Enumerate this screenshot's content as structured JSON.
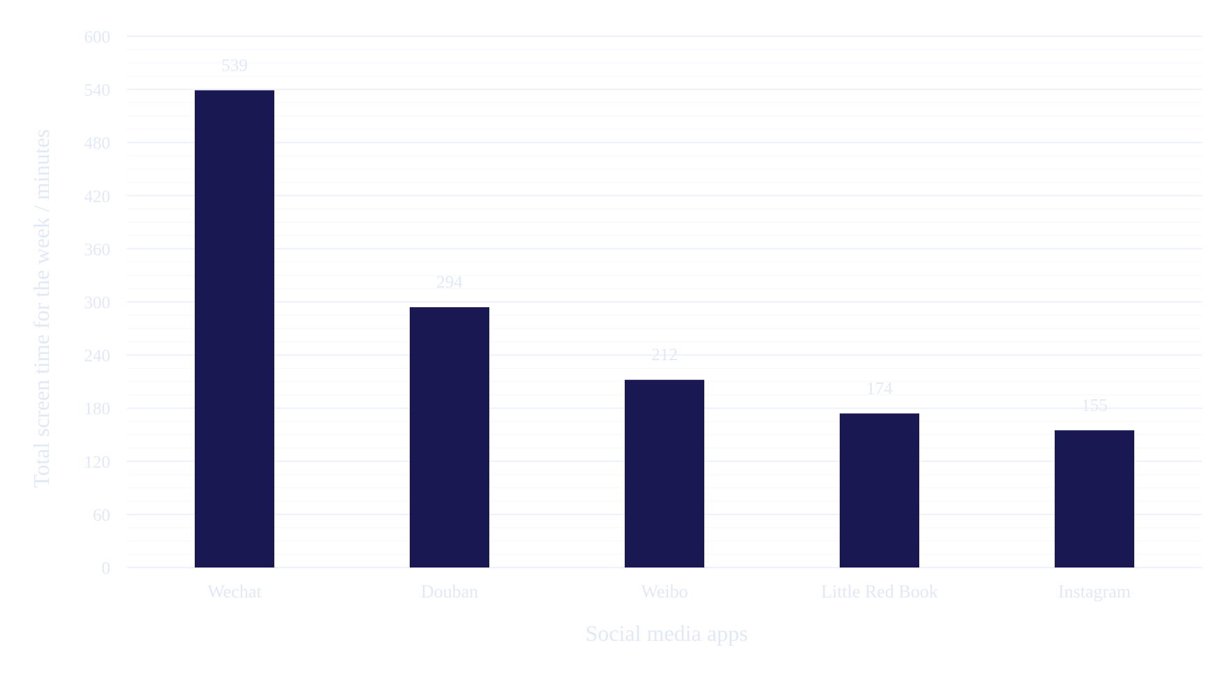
{
  "chart_data": {
    "type": "bar",
    "title": "",
    "xlabel": "Social media apps",
    "ylabel": "Total screen time for the week / minutes",
    "categories": [
      "Wechat",
      "Douban",
      "Weibo",
      "Little Red Book",
      "Instagram"
    ],
    "values": [
      539,
      294,
      212,
      174,
      155
    ],
    "data_labels": [
      "539",
      "294",
      "212",
      "174",
      "155"
    ],
    "ylim": [
      0,
      600
    ],
    "yticks": [
      0,
      60,
      120,
      180,
      240,
      300,
      360,
      420,
      480,
      540,
      600
    ],
    "minor_grid_step": 15,
    "grid": true,
    "legend": "none"
  },
  "colors": {
    "bar": "#1a1853",
    "text": "#e3e8f6",
    "grid_major": "#eef1fb",
    "grid_minor": "#f6f7fc"
  }
}
